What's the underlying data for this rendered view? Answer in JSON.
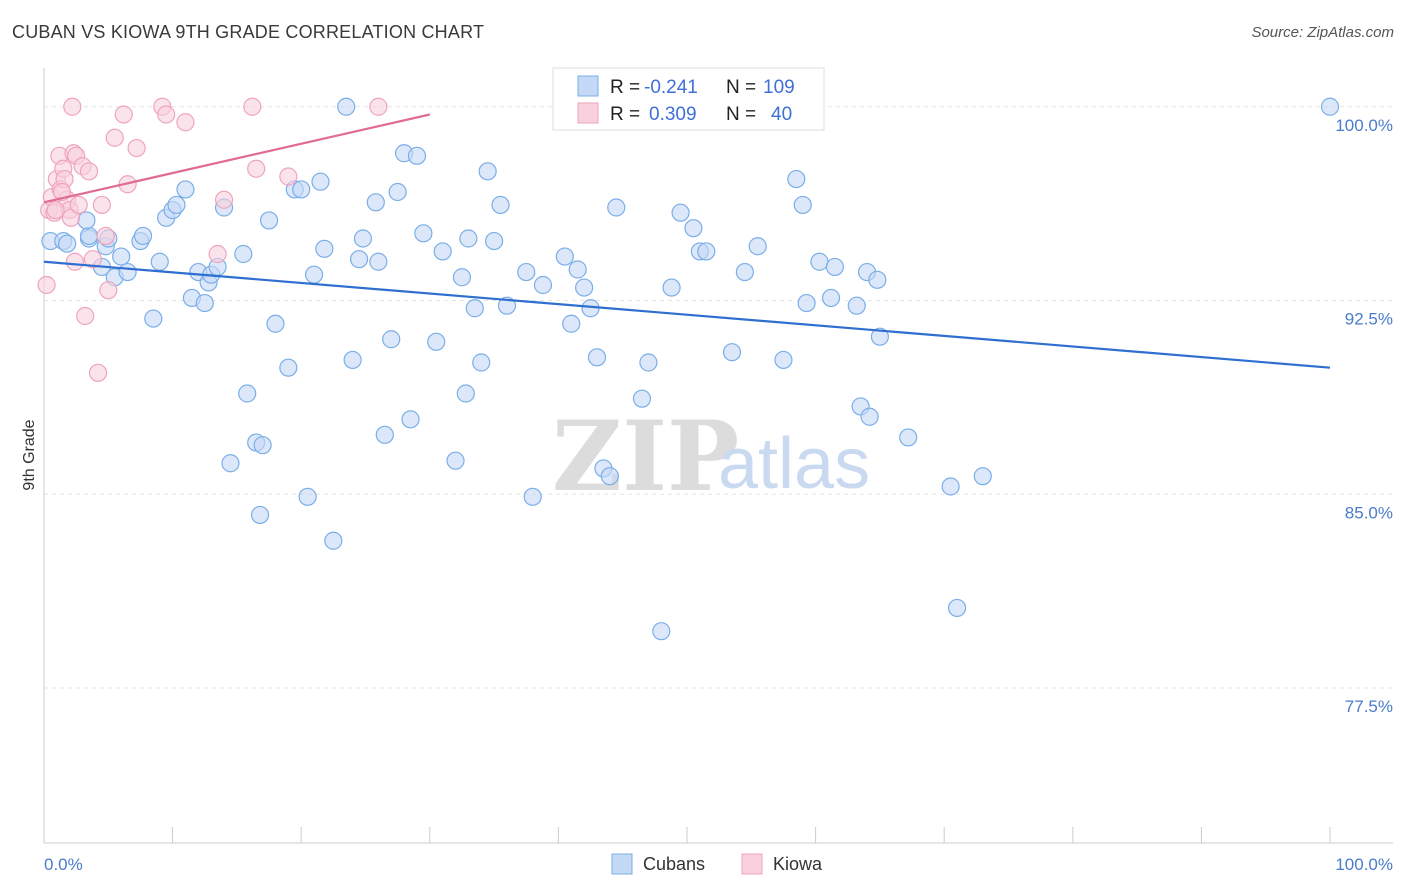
{
  "title": "CUBAN VS KIOWA 9TH GRADE CORRELATION CHART",
  "source": "Source: ZipAtlas.com",
  "watermark": {
    "zip": "ZIP",
    "atlas": "atlas"
  },
  "chart_data": {
    "type": "scatter",
    "ylabel": "9th Grade",
    "xlim": [
      0,
      100
    ],
    "ylim": [
      71.5,
      101.5
    ],
    "y_ticks": [
      {
        "value": 100.0,
        "label": "100.0%"
      },
      {
        "value": 92.5,
        "label": "92.5%"
      },
      {
        "value": 85.0,
        "label": "85.0%"
      },
      {
        "value": 77.5,
        "label": "77.5%"
      }
    ],
    "x_tick_labels": {
      "left": "0.0%",
      "right": "100.0%"
    },
    "grid": true,
    "legend": {
      "position": "top-center",
      "entries": [
        {
          "r_label": "R =",
          "r_value": "-0.241",
          "n_label": "N =",
          "n_value": "109"
        },
        {
          "r_label": "R =",
          "r_value": "0.309",
          "n_label": "N =",
          "n_value": "40"
        }
      ]
    },
    "series": [
      {
        "name": "Cubans",
        "color": "#7aaee8",
        "fill": "#c4d9f5",
        "trend": {
          "x": [
            0,
            100
          ],
          "y": [
            94.0,
            89.9
          ]
        },
        "points": [
          [
            0.5,
            94.8
          ],
          [
            1.5,
            94.8
          ],
          [
            1.8,
            94.7
          ],
          [
            3.5,
            94.9
          ],
          [
            3.5,
            95.0
          ],
          [
            3.3,
            95.6
          ],
          [
            4.5,
            93.8
          ],
          [
            4.8,
            94.6
          ],
          [
            5.0,
            94.9
          ],
          [
            5.5,
            93.4
          ],
          [
            6.0,
            94.2
          ],
          [
            6.5,
            93.6
          ],
          [
            7.5,
            94.8
          ],
          [
            7.7,
            95.0
          ],
          [
            8.5,
            91.8
          ],
          [
            9.0,
            94.0
          ],
          [
            9.5,
            95.7
          ],
          [
            10.0,
            96.0
          ],
          [
            10.3,
            96.2
          ],
          [
            11.0,
            96.8
          ],
          [
            11.5,
            92.6
          ],
          [
            12.0,
            93.6
          ],
          [
            12.5,
            92.4
          ],
          [
            12.8,
            93.2
          ],
          [
            13.0,
            93.5
          ],
          [
            13.5,
            93.8
          ],
          [
            14.0,
            96.1
          ],
          [
            14.5,
            86.2
          ],
          [
            15.5,
            94.3
          ],
          [
            15.8,
            88.9
          ],
          [
            16.5,
            87.0
          ],
          [
            17.0,
            86.9
          ],
          [
            16.8,
            84.2
          ],
          [
            17.5,
            95.6
          ],
          [
            18.0,
            91.6
          ],
          [
            19.0,
            89.9
          ],
          [
            19.5,
            96.8
          ],
          [
            20.0,
            96.8
          ],
          [
            20.5,
            84.9
          ],
          [
            21.0,
            93.5
          ],
          [
            21.5,
            97.1
          ],
          [
            21.8,
            94.5
          ],
          [
            22.5,
            83.2
          ],
          [
            23.5,
            100.0
          ],
          [
            24.0,
            90.2
          ],
          [
            24.5,
            94.1
          ],
          [
            24.8,
            94.9
          ],
          [
            25.8,
            96.3
          ],
          [
            26.0,
            94.0
          ],
          [
            26.5,
            87.3
          ],
          [
            27.0,
            91.0
          ],
          [
            27.5,
            96.7
          ],
          [
            28.0,
            98.2
          ],
          [
            28.5,
            87.9
          ],
          [
            29.0,
            98.1
          ],
          [
            29.5,
            95.1
          ],
          [
            30.5,
            90.9
          ],
          [
            31.0,
            94.4
          ],
          [
            32.0,
            86.3
          ],
          [
            32.5,
            93.4
          ],
          [
            32.8,
            88.9
          ],
          [
            33.0,
            94.9
          ],
          [
            33.5,
            92.2
          ],
          [
            34.0,
            90.1
          ],
          [
            34.5,
            97.5
          ],
          [
            35.0,
            94.8
          ],
          [
            35.5,
            96.2
          ],
          [
            36.0,
            92.3
          ],
          [
            37.5,
            93.6
          ],
          [
            38.0,
            84.9
          ],
          [
            38.8,
            93.1
          ],
          [
            40.5,
            94.2
          ],
          [
            41.0,
            91.6
          ],
          [
            41.5,
            93.7
          ],
          [
            42.0,
            93.0
          ],
          [
            42.5,
            92.2
          ],
          [
            43.0,
            90.3
          ],
          [
            43.5,
            86.0
          ],
          [
            44.0,
            85.7
          ],
          [
            44.5,
            96.1
          ],
          [
            46.5,
            88.7
          ],
          [
            47.0,
            90.1
          ],
          [
            48.0,
            79.7
          ],
          [
            48.8,
            93.0
          ],
          [
            49.5,
            95.9
          ],
          [
            50.5,
            95.3
          ],
          [
            51.0,
            94.4
          ],
          [
            51.5,
            94.4
          ],
          [
            53.5,
            90.5
          ],
          [
            54.5,
            93.6
          ],
          [
            55.5,
            94.6
          ],
          [
            57.5,
            90.2
          ],
          [
            58.5,
            97.2
          ],
          [
            59.0,
            96.2
          ],
          [
            59.3,
            92.4
          ],
          [
            60.3,
            94.0
          ],
          [
            61.2,
            92.6
          ],
          [
            61.5,
            93.8
          ],
          [
            63.2,
            92.3
          ],
          [
            63.5,
            88.4
          ],
          [
            64.0,
            93.6
          ],
          [
            64.2,
            88.0
          ],
          [
            64.8,
            93.3
          ],
          [
            65.0,
            91.1
          ],
          [
            67.2,
            87.2
          ],
          [
            70.5,
            85.3
          ],
          [
            71.0,
            80.6
          ],
          [
            73.0,
            85.7
          ],
          [
            100.0,
            100.0
          ]
        ]
      },
      {
        "name": "Kiowa",
        "color": "#f0a3bd",
        "fill": "#f9d0dd",
        "trend": {
          "x": [
            0,
            30
          ],
          "y": [
            96.3,
            99.7
          ]
        },
        "points": [
          [
            0.2,
            93.1
          ],
          [
            0.4,
            96.0
          ],
          [
            0.6,
            96.5
          ],
          [
            0.8,
            95.9
          ],
          [
            1.0,
            97.2
          ],
          [
            1.2,
            98.1
          ],
          [
            1.3,
            96.8
          ],
          [
            1.5,
            97.6
          ],
          [
            1.6,
            97.2
          ],
          [
            1.8,
            96.4
          ],
          [
            2.0,
            96.0
          ],
          [
            2.1,
            95.7
          ],
          [
            2.2,
            100.0
          ],
          [
            2.3,
            98.2
          ],
          [
            2.5,
            98.1
          ],
          [
            2.7,
            96.2
          ],
          [
            3.0,
            97.7
          ],
          [
            3.5,
            97.5
          ],
          [
            3.8,
            94.1
          ],
          [
            4.2,
            89.7
          ],
          [
            4.5,
            96.2
          ],
          [
            4.8,
            95.0
          ],
          [
            5.0,
            92.9
          ],
          [
            5.5,
            98.8
          ],
          [
            6.2,
            99.7
          ],
          [
            6.5,
            97.0
          ],
          [
            7.2,
            98.4
          ],
          [
            9.2,
            100.0
          ],
          [
            9.5,
            99.7
          ],
          [
            11.0,
            99.4
          ],
          [
            13.5,
            94.3
          ],
          [
            14.0,
            96.4
          ],
          [
            16.2,
            100.0
          ],
          [
            16.5,
            97.6
          ],
          [
            19.0,
            97.3
          ],
          [
            26.0,
            100.0
          ],
          [
            3.2,
            91.9
          ],
          [
            1.4,
            96.7
          ],
          [
            0.9,
            96.0
          ],
          [
            2.4,
            94.0
          ]
        ]
      }
    ]
  }
}
